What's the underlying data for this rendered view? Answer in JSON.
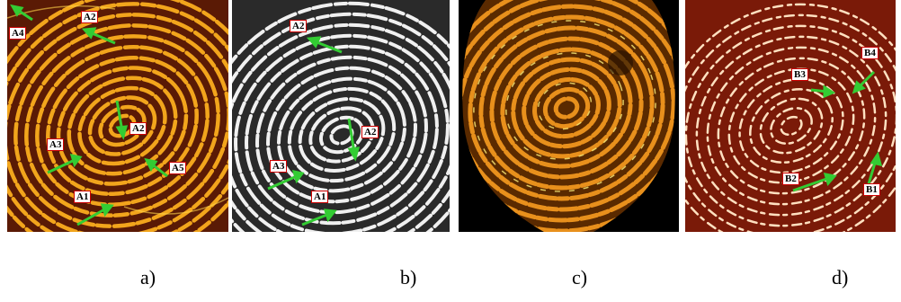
{
  "panels": [
    {
      "id": "a",
      "caption": "a)",
      "colors": {
        "background": "#5a1a05",
        "ridge": "#f2a51c",
        "highlight": "#ffd34a"
      },
      "markers": [
        "A4",
        "A2",
        "A2",
        "A3",
        "A5",
        "A1"
      ]
    },
    {
      "id": "b",
      "caption": "b)",
      "colors": {
        "background": "#2a2a2a",
        "ridge": "#f0f0f0",
        "highlight": "#ffffff"
      },
      "markers": [
        "A2",
        "A2",
        "A3",
        "A1"
      ]
    },
    {
      "id": "c",
      "caption": "c)",
      "colors": {
        "background": "#000000",
        "ridge": "#e8901c",
        "highlight": "#fff07a"
      },
      "markers": []
    },
    {
      "id": "d",
      "caption": "d)",
      "colors": {
        "background": "#7a1a08",
        "ridge": "#ffe0c0",
        "highlight": "#ffffff"
      },
      "markers": [
        "B3",
        "B4",
        "B2",
        "B1"
      ]
    }
  ],
  "arrow_color": "#33cc33"
}
